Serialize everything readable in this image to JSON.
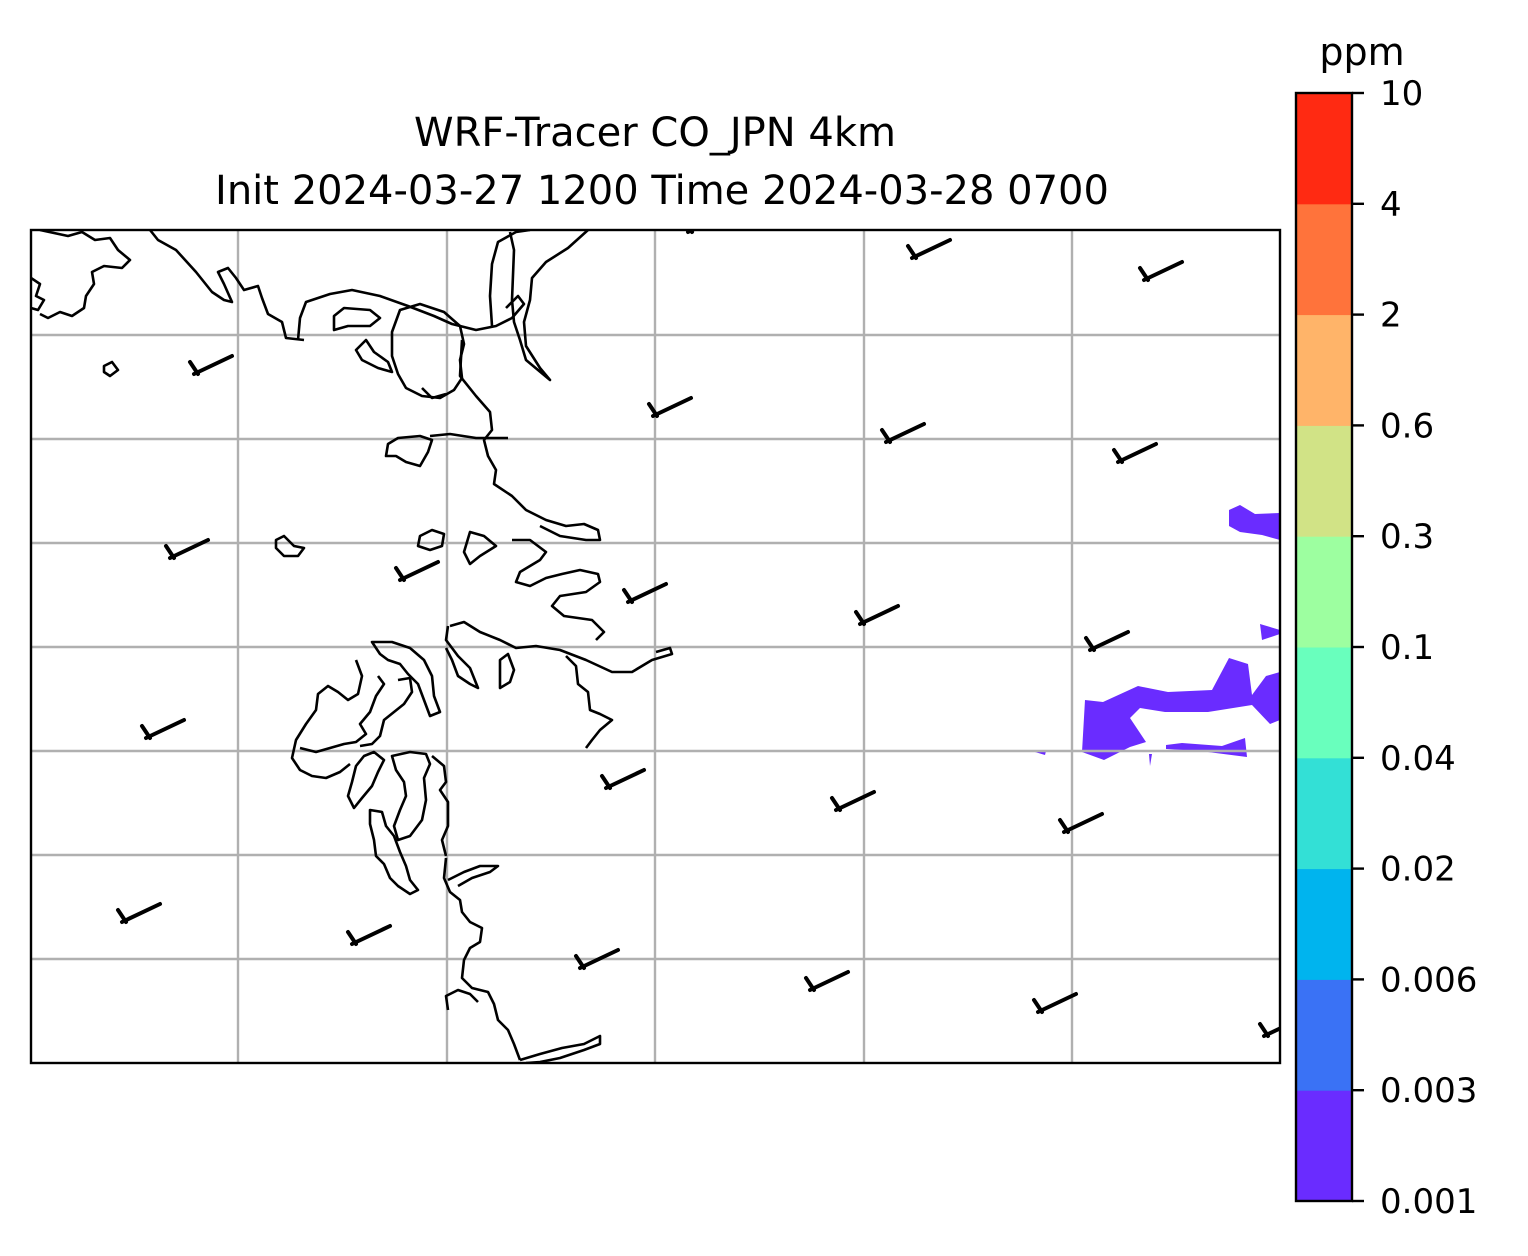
{
  "title": {
    "line1": "WRF-Tracer CO_JPN 4km",
    "line2": "Init 2024-03-27 1200 Time 2024-03-28 0700"
  },
  "colorbar": {
    "unit": "ppm",
    "levels": [
      "0.001",
      "0.003",
      "0.006",
      "0.02",
      "0.04",
      "0.1",
      "0.3",
      "0.6",
      "2",
      "4",
      "10"
    ],
    "colors": [
      "#6a2cff",
      "#3a72f5",
      "#00b4ee",
      "#33e0d6",
      "#69ffbd",
      "#9dffa0",
      "#d1e386",
      "#ffb469",
      "#ff733b",
      "#ff2a12"
    ]
  },
  "map": {
    "gridlines": true,
    "gridline_color": "#b0b0b0",
    "coastline_color": "#000000",
    "tracer_fill_color": "#6a2cff",
    "wind_barb_icon": "wind-barb-icon"
  }
}
